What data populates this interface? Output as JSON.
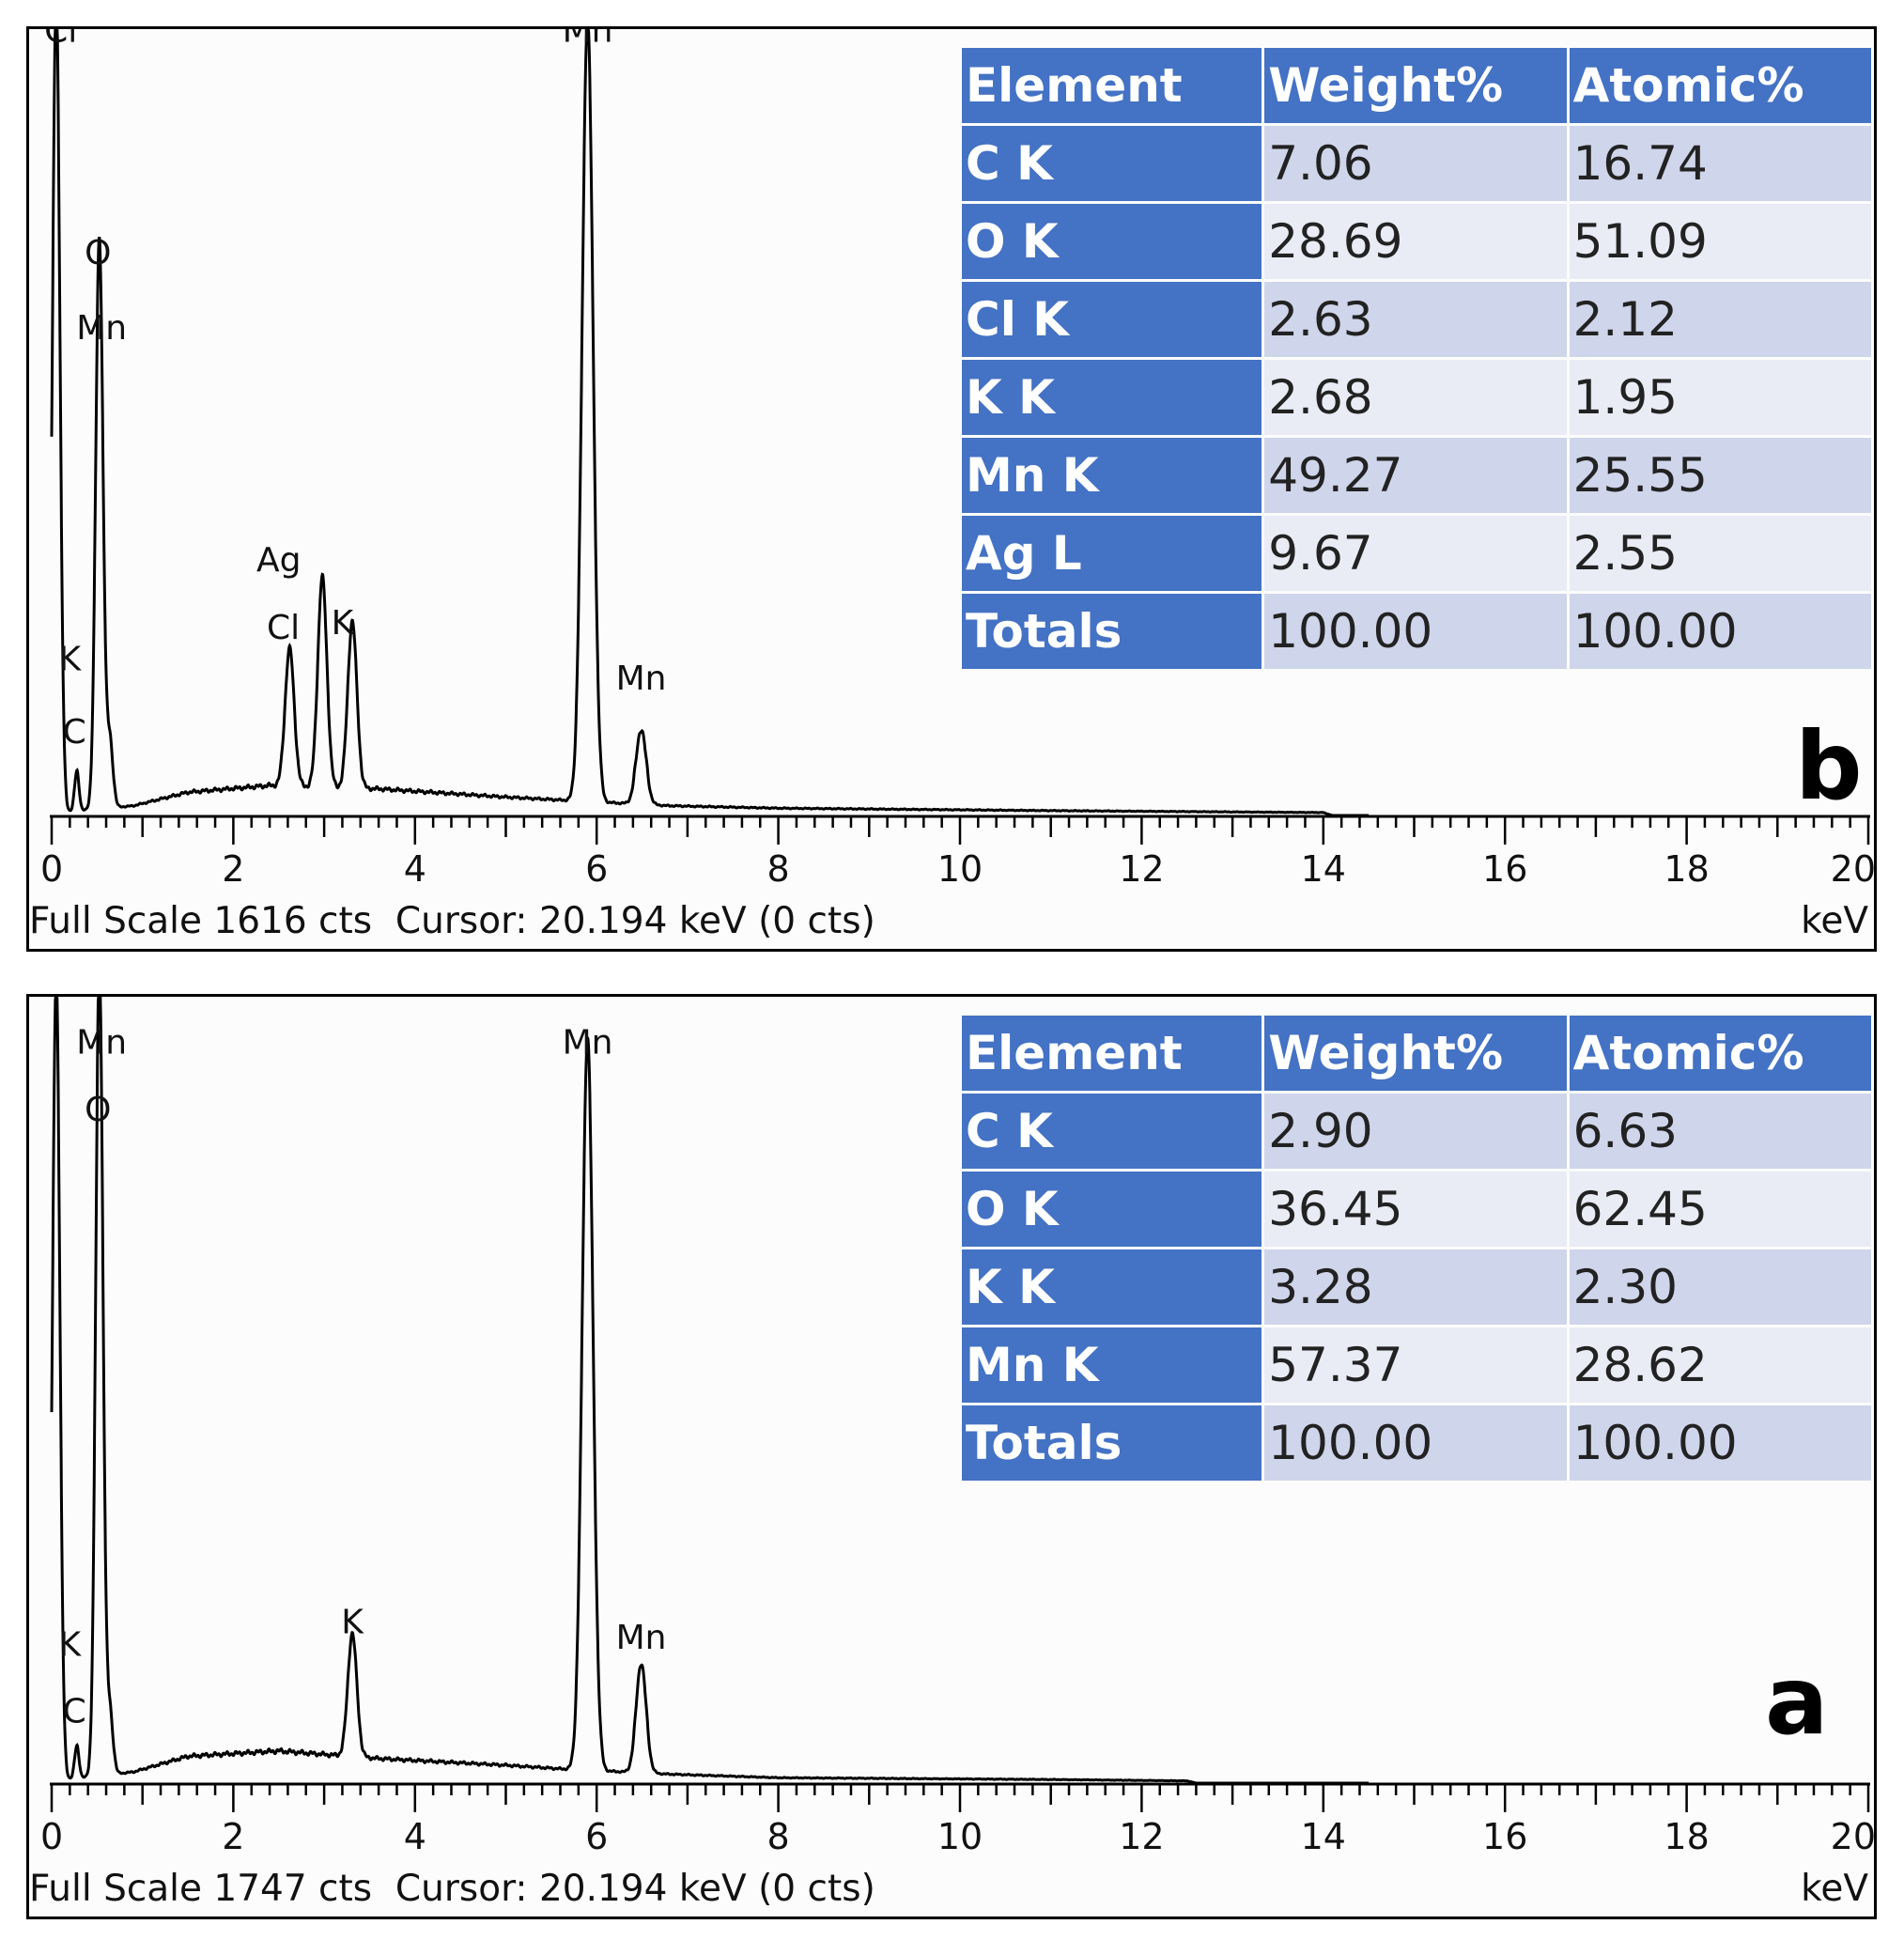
{
  "chart_data": [
    {
      "panel": "b",
      "type": "line",
      "xlabel": "keV",
      "xlim": [
        0,
        20
      ],
      "ylim": [
        0,
        1616
      ],
      "xticks": [
        0,
        2,
        4,
        6,
        8,
        10,
        12,
        14,
        16,
        18,
        20
      ],
      "full_scale_text": "Full Scale 1616 cts",
      "cursor_text": "Cursor: 20.194 keV (0 cts)",
      "panel_letter": "b",
      "peaks": [
        {
          "x": 0.05,
          "y": 1700,
          "w": 0.04
        },
        {
          "x": 0.277,
          "y": 80,
          "w": 0.025
        },
        {
          "x": 0.525,
          "y": 1180,
          "w": 0.04
        },
        {
          "x": 0.64,
          "y": 140,
          "w": 0.035
        },
        {
          "x": 2.62,
          "y": 285,
          "w": 0.05
        },
        {
          "x": 2.98,
          "y": 435,
          "w": 0.05
        },
        {
          "x": 3.31,
          "y": 345,
          "w": 0.05
        },
        {
          "x": 5.9,
          "y": 1620,
          "w": 0.06
        },
        {
          "x": 6.49,
          "y": 155,
          "w": 0.055
        }
      ],
      "background": [
        [
          0,
          5
        ],
        [
          0.9,
          20
        ],
        [
          1.5,
          48
        ],
        [
          2.4,
          62
        ],
        [
          3.6,
          55
        ],
        [
          5.0,
          38
        ],
        [
          5.6,
          32
        ],
        [
          6.8,
          20
        ],
        [
          8,
          15
        ],
        [
          11,
          10
        ],
        [
          14,
          6
        ],
        [
          14.1,
          0
        ]
      ],
      "peak_labels": [
        {
          "text": "Cl",
          "x": 0.1,
          "y": 1600
        },
        {
          "text": "O",
          "x": 0.51,
          "y": 1140
        },
        {
          "text": "Mn",
          "x": 0.55,
          "y": 985
        },
        {
          "text": "K",
          "x": 0.2,
          "y": 300
        },
        {
          "text": "C",
          "x": 0.25,
          "y": 150
        },
        {
          "text": "Ag",
          "x": 2.5,
          "y": 505
        },
        {
          "text": "Cl",
          "x": 2.55,
          "y": 365
        },
        {
          "text": "K",
          "x": 3.2,
          "y": 375
        },
        {
          "text": "Mn",
          "x": 5.9,
          "y": 1600
        },
        {
          "text": "Mn",
          "x": 6.49,
          "y": 260
        }
      ],
      "table": {
        "headers": [
          "Element",
          "Weight%",
          "Atomic%"
        ],
        "rows": [
          [
            "C K",
            "7.06",
            "16.74"
          ],
          [
            "O K",
            "28.69",
            "51.09"
          ],
          [
            "Cl K",
            "2.63",
            "2.12"
          ],
          [
            "K K",
            "2.68",
            "1.95"
          ],
          [
            "Mn K",
            "49.27",
            "25.55"
          ],
          [
            "Ag L",
            "9.67",
            "2.55"
          ],
          [
            "Totals",
            "100.00",
            "100.00"
          ]
        ]
      }
    },
    {
      "panel": "a",
      "type": "line",
      "xlabel": "keV",
      "xlim": [
        0,
        20
      ],
      "ylim": [
        0,
        1747
      ],
      "xticks": [
        0,
        2,
        4,
        6,
        8,
        10,
        12,
        14,
        16,
        18,
        20
      ],
      "full_scale_text": "Full Scale 1747 cts",
      "cursor_text": "Cursor: 20.194 keV (0 cts)",
      "panel_letter": "a",
      "peaks": [
        {
          "x": 0.05,
          "y": 1800,
          "w": 0.04
        },
        {
          "x": 0.277,
          "y": 70,
          "w": 0.025
        },
        {
          "x": 0.525,
          "y": 1820,
          "w": 0.04
        },
        {
          "x": 0.64,
          "y": 140,
          "w": 0.035
        },
        {
          "x": 3.31,
          "y": 275,
          "w": 0.05
        },
        {
          "x": 5.9,
          "y": 1640,
          "w": 0.06
        },
        {
          "x": 6.49,
          "y": 245,
          "w": 0.055
        }
      ],
      "background": [
        [
          0,
          5
        ],
        [
          0.9,
          25
        ],
        [
          1.5,
          60
        ],
        [
          2.5,
          72
        ],
        [
          3.6,
          55
        ],
        [
          5.0,
          40
        ],
        [
          5.6,
          32
        ],
        [
          6.8,
          20
        ],
        [
          8,
          12
        ],
        [
          11,
          8
        ],
        [
          12.5,
          5
        ],
        [
          12.6,
          0
        ]
      ],
      "peak_labels": [
        {
          "text": "Mn",
          "x": 0.55,
          "y": 1630
        },
        {
          "text": "O",
          "x": 0.51,
          "y": 1480
        },
        {
          "text": "K",
          "x": 0.2,
          "y": 285
        },
        {
          "text": "C",
          "x": 0.25,
          "y": 135
        },
        {
          "text": "K",
          "x": 3.31,
          "y": 335
        },
        {
          "text": "Mn",
          "x": 5.9,
          "y": 1630
        },
        {
          "text": "Mn",
          "x": 6.49,
          "y": 300
        }
      ],
      "table": {
        "headers": [
          "Element",
          "Weight%",
          "Atomic%"
        ],
        "rows": [
          [
            "C K",
            "2.90",
            "6.63"
          ],
          [
            "O K",
            "36.45",
            "62.45"
          ],
          [
            "K K",
            "3.28",
            "2.30"
          ],
          [
            "Mn K",
            "57.37",
            "28.62"
          ],
          [
            "Totals",
            "100.00",
            "100.00"
          ]
        ]
      }
    }
  ]
}
